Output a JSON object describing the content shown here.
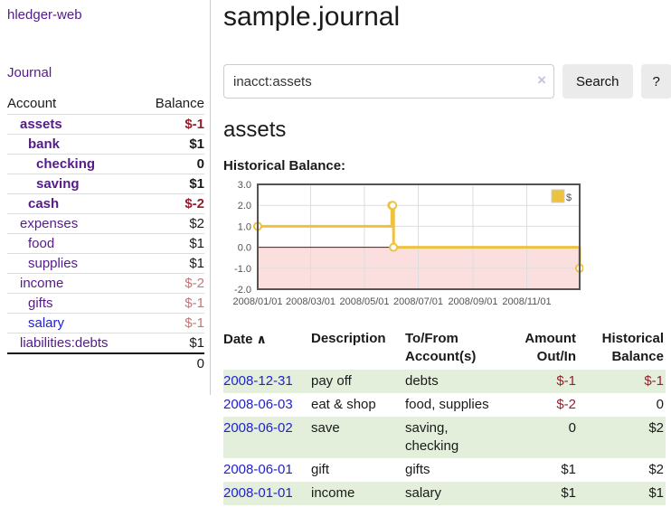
{
  "colors": {
    "link-purple": "#551a8b",
    "link-blue": "#2222cc",
    "neg-strong": "#941f2d",
    "neg-soft": "#c27878",
    "accent-gold": "#edc240",
    "stripe-green": "#e3efdb",
    "zero-line": "#8b0000",
    "neg-region": "#fbdfdf",
    "button-bg": "#ebebeb",
    "border-gray": "#cccccc"
  },
  "sidebar": {
    "brand": "hledger-web",
    "nav": {
      "journal_label": "Journal"
    },
    "accounts": {
      "headers": {
        "account": "Account",
        "balance": "Balance"
      },
      "rows": [
        {
          "name": "assets",
          "indent": 1,
          "bold": true,
          "name_color": "purple",
          "balance": "$-1",
          "balance_color": "negative"
        },
        {
          "name": "bank",
          "indent": 2,
          "bold": true,
          "name_color": "purple",
          "balance": "$1",
          "balance_color": "normal"
        },
        {
          "name": "checking",
          "indent": 3,
          "bold": true,
          "name_color": "purple",
          "balance": "0",
          "balance_color": "normal"
        },
        {
          "name": "saving",
          "indent": 3,
          "bold": true,
          "name_color": "purple",
          "balance": "$1",
          "balance_color": "normal"
        },
        {
          "name": "cash",
          "indent": 2,
          "bold": true,
          "name_color": "purple",
          "balance": "$-2",
          "balance_color": "negative"
        },
        {
          "name": "expenses",
          "indent": 1,
          "bold": false,
          "name_color": "purple",
          "balance": "$2",
          "balance_color": "normal"
        },
        {
          "name": "food",
          "indent": 2,
          "bold": false,
          "name_color": "purple",
          "balance": "$1",
          "balance_color": "normal"
        },
        {
          "name": "supplies",
          "indent": 2,
          "bold": false,
          "name_color": "purple",
          "balance": "$1",
          "balance_color": "normal"
        },
        {
          "name": "income",
          "indent": 1,
          "bold": false,
          "name_color": "purple",
          "balance": "$-2",
          "balance_color": "negative-soft"
        },
        {
          "name": "gifts",
          "indent": 2,
          "bold": false,
          "name_color": "purple",
          "balance": "$-1",
          "balance_color": "negative-soft"
        },
        {
          "name": "salary",
          "indent": 2,
          "bold": false,
          "name_color": "blue",
          "balance": "$-1",
          "balance_color": "negative-soft"
        },
        {
          "name": "liabilities:debts",
          "indent": 1,
          "bold": false,
          "name_color": "purple",
          "balance": "$1",
          "balance_color": "normal"
        }
      ],
      "total": "0"
    }
  },
  "main": {
    "title": "sample.journal",
    "search": {
      "value": "inacct:assets",
      "clear_icon": "×",
      "search_button": "Search",
      "help_button": "?"
    },
    "account_heading": "assets",
    "chart": {
      "label": "Historical Balance:",
      "chart_data": {
        "type": "line",
        "step": true,
        "series": [
          {
            "name": "$",
            "color": "#edc240",
            "points": [
              [
                "2008/01/01",
                1
              ],
              [
                "2008/06/01",
                2
              ],
              [
                "2008/06/02",
                2
              ],
              [
                "2008/06/03",
                0
              ],
              [
                "2008/12/31",
                -1
              ]
            ]
          }
        ],
        "x_ticks": [
          "2008/01/01",
          "2008/03/01",
          "2008/05/01",
          "2008/07/01",
          "2008/09/01",
          "2008/11/01"
        ],
        "y_ticks": [
          3.0,
          2.0,
          1.0,
          0.0,
          -1.0,
          -2.0
        ],
        "xlim": [
          "2008/01/01",
          "2008/12/31"
        ],
        "ylim": [
          -2,
          3
        ],
        "legend": {
          "position": "top-right",
          "label": "$"
        },
        "grid": true,
        "zero_line_color": "#8b0000",
        "negative_region_color": "#fbdfdf"
      }
    },
    "register": {
      "sort_icon": "∧",
      "headers": [
        {
          "label": "Date",
          "align": "left"
        },
        {
          "label": "Description",
          "align": "left"
        },
        {
          "label": "To/From Account(s)",
          "align": "left"
        },
        {
          "label": "Amount Out/In",
          "align": "right"
        },
        {
          "label": "Historical Balance",
          "align": "right"
        }
      ],
      "rows": [
        {
          "date": "2008-12-31",
          "description": "pay off",
          "accounts": [
            "debts"
          ],
          "amount": "$-1",
          "amount_color": "negative",
          "balance": "$-1",
          "balance_color": "negative",
          "striped": true
        },
        {
          "date": "2008-06-03",
          "description": "eat & shop",
          "accounts": [
            "food, supplies"
          ],
          "amount": "$-2",
          "amount_color": "negative",
          "balance": "0",
          "balance_color": "normal",
          "striped": false
        },
        {
          "date": "2008-06-02",
          "description": "save",
          "accounts": [
            "saving,",
            "checking"
          ],
          "amount": "0",
          "amount_color": "normal",
          "balance": "$2",
          "balance_color": "normal",
          "striped": true
        },
        {
          "date": "2008-06-01",
          "description": "gift",
          "accounts": [
            "gifts"
          ],
          "amount": "$1",
          "amount_color": "normal",
          "balance": "$2",
          "balance_color": "normal",
          "striped": false
        },
        {
          "date": "2008-01-01",
          "description": "income",
          "accounts": [
            "salary"
          ],
          "amount": "$1",
          "amount_color": "normal",
          "balance": "$1",
          "balance_color": "normal",
          "striped": true
        }
      ]
    }
  }
}
